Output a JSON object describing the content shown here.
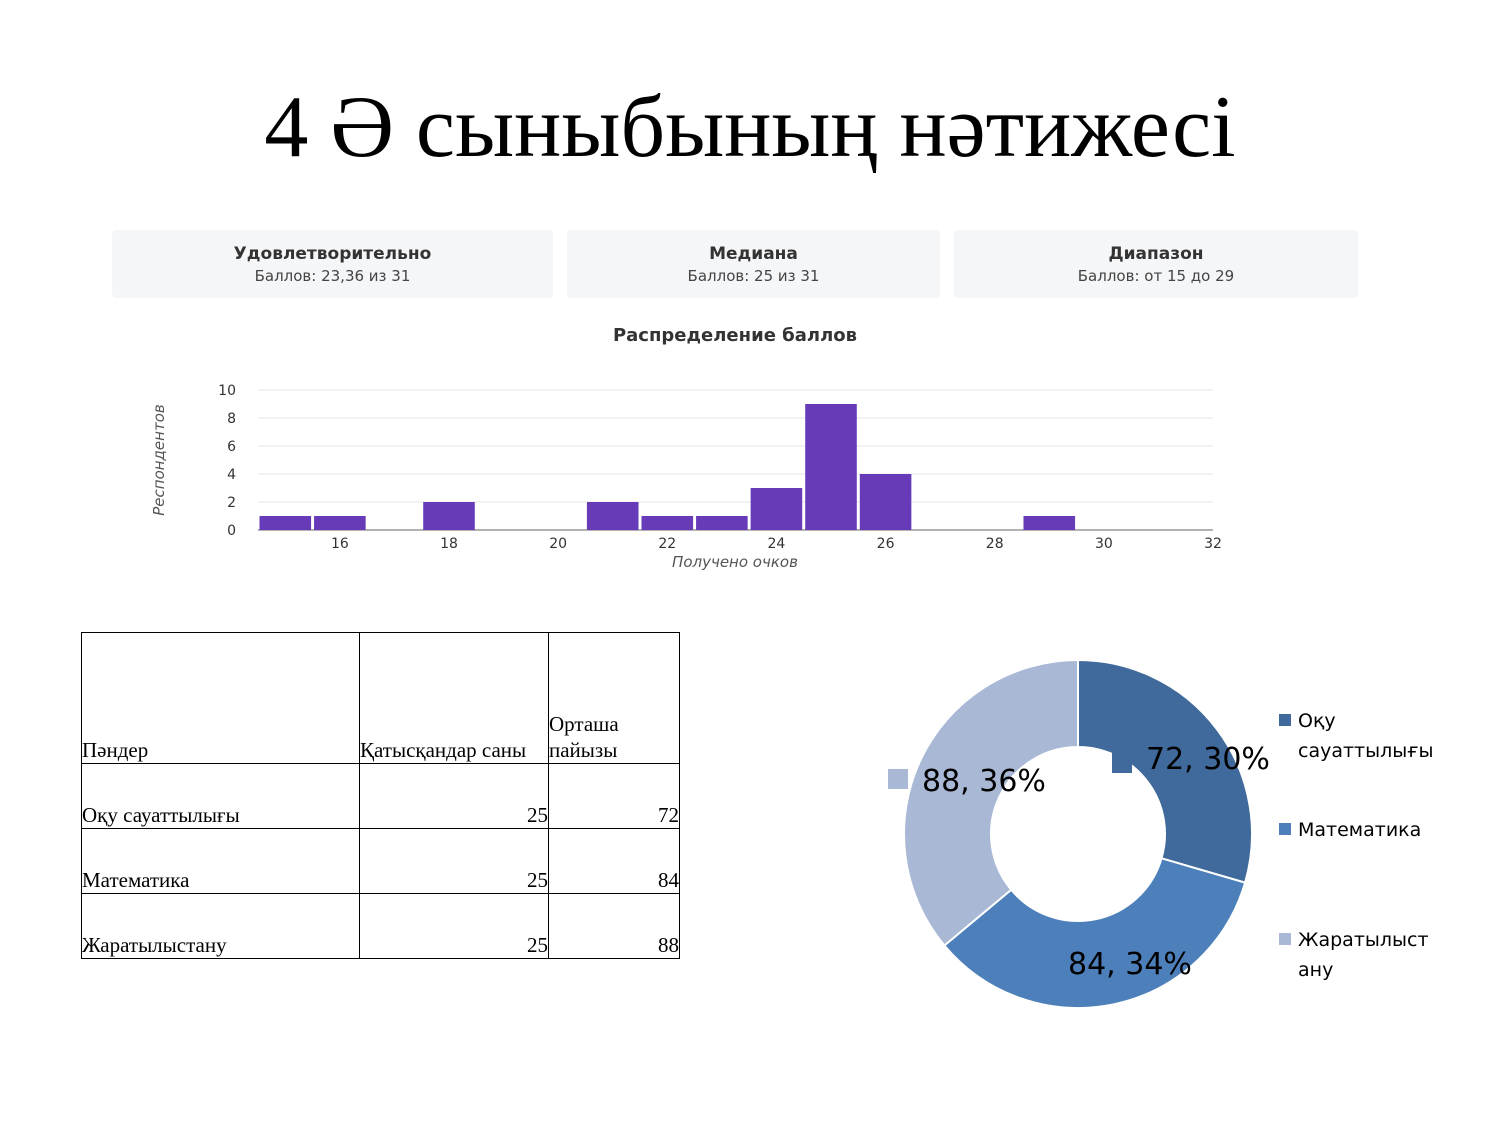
{
  "title": "4 Ә сыныбының нәтижесі",
  "stats": [
    {
      "title": "Удовлетворительно",
      "subtitle": "Баллов: 23,36 из 31"
    },
    {
      "title": "Медиана",
      "subtitle": "Баллов: 25 из 31"
    },
    {
      "title": "Диапазон",
      "subtitle": "Баллов: от 15 до 29"
    }
  ],
  "chart_data": [
    {
      "type": "bar",
      "title": "Распределение баллов",
      "xlabel": "Получено очков",
      "ylabel": "Респондентов",
      "xlim": [
        14.5,
        32
      ],
      "ylim": [
        0,
        10
      ],
      "xticks": [
        16,
        18,
        20,
        22,
        24,
        26,
        28,
        30,
        32
      ],
      "yticks": [
        0,
        2,
        4,
        6,
        8,
        10
      ],
      "grid": true,
      "color": "#673ab7",
      "x": [
        15,
        16,
        18,
        21,
        22,
        23,
        24,
        25,
        26,
        29
      ],
      "values": [
        1,
        1,
        2,
        2,
        1,
        1,
        3,
        9,
        4,
        1
      ]
    },
    {
      "type": "pie",
      "categories": [
        "Оқу сауаттылығы",
        "Математика",
        "Жаратылыстану"
      ],
      "values": [
        72,
        84,
        88
      ],
      "labels": [
        "72, 30%",
        "84, 34%",
        "88, 36%"
      ],
      "colors": [
        "#406a9b",
        "#4d80bb",
        "#a9b8d5"
      ],
      "legend": "right"
    }
  ],
  "table": {
    "headers": [
      "Пәндер",
      "Қатысқандар саны",
      "Орташа пайызы"
    ],
    "rows": [
      [
        "Оқу сауаттылығы",
        "25",
        "72"
      ],
      [
        "Математика",
        "25",
        "84"
      ],
      [
        "Жаратылыстану",
        "25",
        "88"
      ]
    ]
  }
}
